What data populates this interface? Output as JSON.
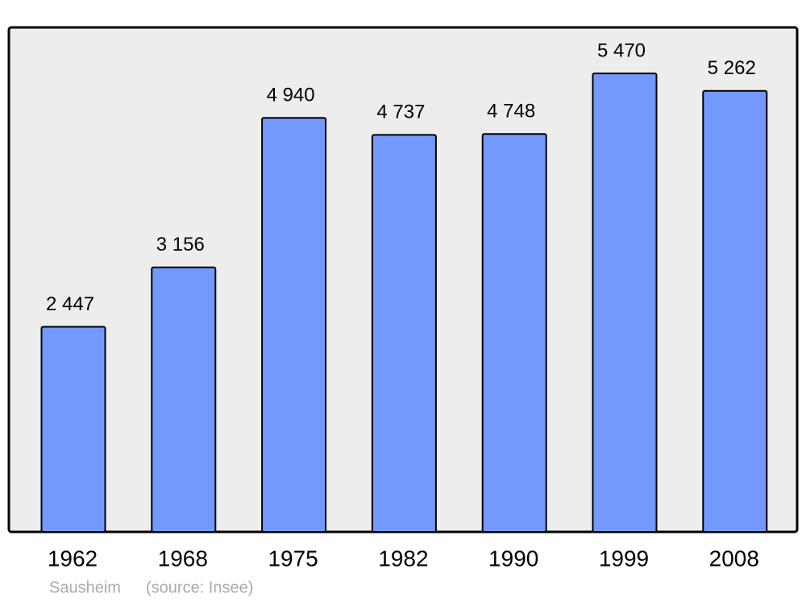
{
  "chart_data": {
    "type": "bar",
    "categories": [
      "1962",
      "1968",
      "1975",
      "1982",
      "1990",
      "1999",
      "2008"
    ],
    "values": [
      2447,
      3156,
      4940,
      4737,
      4748,
      5470,
      5262
    ],
    "value_labels": [
      "2 447",
      "3 156",
      "4 940",
      "4 737",
      "4 748",
      "5 470",
      "5 262"
    ],
    "color": "#7399ff",
    "ylim": [
      0,
      6000
    ],
    "place": "Sausheim",
    "source": "(source: Insee)"
  }
}
